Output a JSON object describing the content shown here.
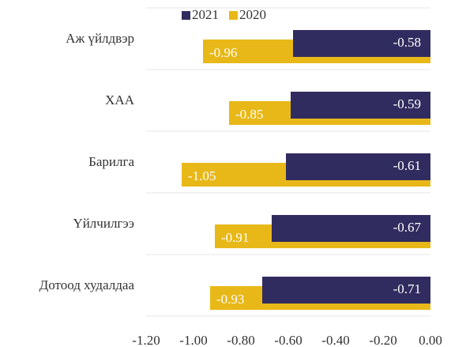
{
  "chart_data": {
    "type": "barh",
    "categories": [
      "Аж үйлдвэр",
      "ХАА",
      "Барилга",
      "Үйлчилгээ",
      "Дотоод худалдаа"
    ],
    "series": [
      {
        "name": "2021",
        "color": "#312c5f",
        "values": [
          -0.58,
          -0.59,
          -0.61,
          -0.67,
          -0.71
        ]
      },
      {
        "name": "2020",
        "color": "#e8b818",
        "values": [
          -0.96,
          -0.85,
          -1.05,
          -0.91,
          -0.93
        ]
      }
    ],
    "xlim": [
      -1.2,
      0
    ],
    "xticks": [
      {
        "value": -1.2,
        "label": "-1.20"
      },
      {
        "value": -1.0,
        "label": "-1.00"
      },
      {
        "value": -0.8,
        "label": "-0.80"
      },
      {
        "value": -0.6,
        "label": "-0.60"
      },
      {
        "value": -0.4,
        "label": "-0.40"
      },
      {
        "value": -0.2,
        "label": "-0.20"
      },
      {
        "value": 0,
        "label": "0.00"
      }
    ],
    "legend": "top"
  }
}
